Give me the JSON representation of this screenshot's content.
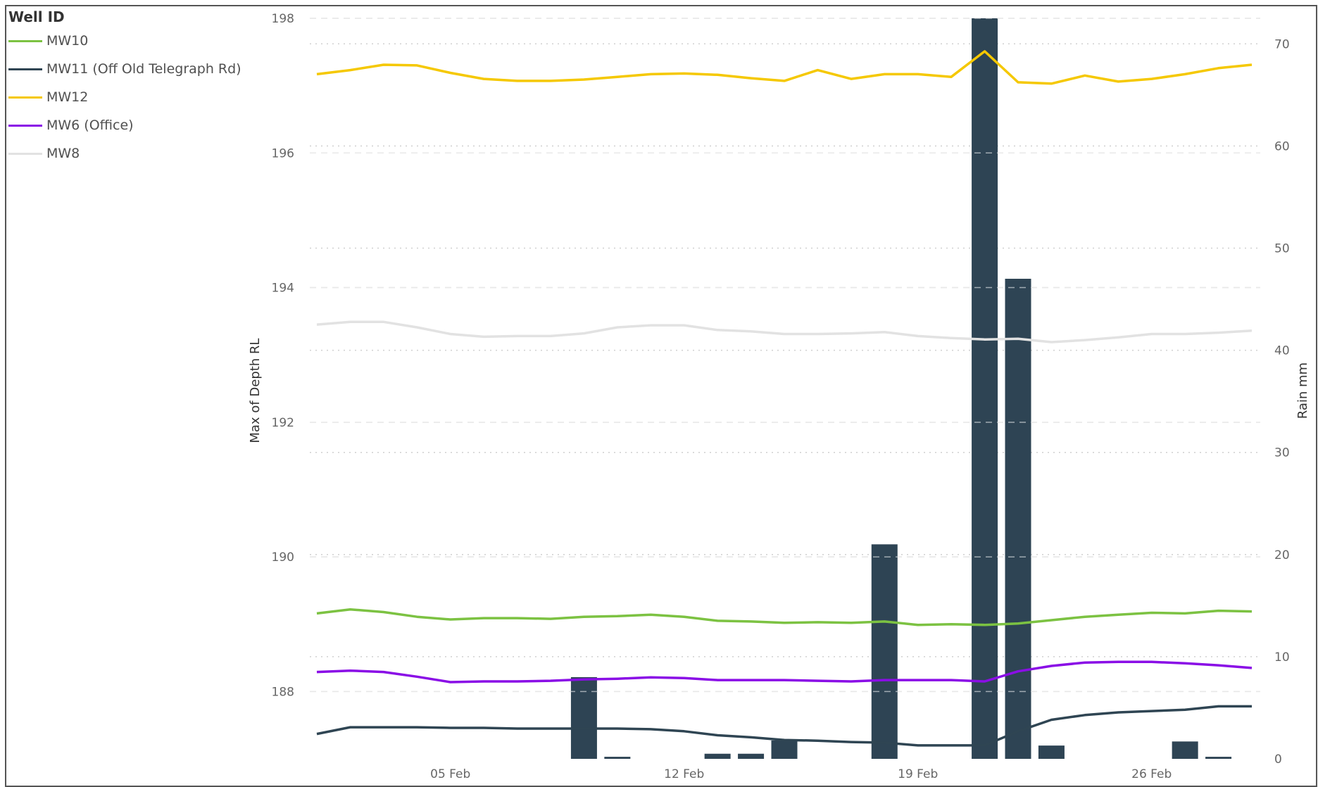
{
  "legend": {
    "title": "Well ID",
    "items": [
      {
        "label": "MW10",
        "color": "#7cc242"
      },
      {
        "label": "MW11 (Off Old Telegraph Rd)",
        "color": "#2f4553"
      },
      {
        "label": "MW12",
        "color": "#f5c800"
      },
      {
        "label": "MW6 (Office)",
        "color": "#8a0ee6"
      },
      {
        "label": "MW8",
        "color": "#e2e2e2"
      }
    ]
  },
  "chart_data": {
    "type": "line",
    "title": "",
    "x_axis": {
      "start_date": "2025-02-01",
      "ticks": [
        {
          "label": "05 Feb",
          "day": 5
        },
        {
          "label": "12 Feb",
          "day": 12
        },
        {
          "label": "19 Feb",
          "day": 19
        },
        {
          "label": "26 Feb",
          "day": 26
        }
      ]
    },
    "left_axis": {
      "title": "Max of Depth RL",
      "min": 187.0,
      "max": 198,
      "ticks": [
        188,
        190,
        192,
        194,
        196,
        198
      ]
    },
    "right_axis": {
      "title": "Rain mm",
      "min": 0,
      "max": 72.5,
      "ticks": [
        0,
        10,
        20,
        30,
        40,
        50,
        60,
        70
      ]
    },
    "dates": [
      "01 Feb",
      "02 Feb",
      "03 Feb",
      "04 Feb",
      "05 Feb",
      "06 Feb",
      "07 Feb",
      "08 Feb",
      "09 Feb",
      "10 Feb",
      "11 Feb",
      "12 Feb",
      "13 Feb",
      "14 Feb",
      "15 Feb",
      "16 Feb",
      "17 Feb",
      "18 Feb",
      "19 Feb",
      "20 Feb",
      "21 Feb",
      "22 Feb",
      "23 Feb",
      "24 Feb",
      "25 Feb",
      "26 Feb",
      "27 Feb",
      "28 Feb",
      "01 Mar"
    ],
    "series": [
      {
        "name": "MW10",
        "color": "#7cc242",
        "axis": "left",
        "values": [
          189.16,
          189.22,
          189.18,
          189.11,
          189.07,
          189.09,
          189.09,
          189.08,
          189.11,
          189.12,
          189.14,
          189.11,
          189.05,
          189.04,
          189.02,
          189.03,
          189.02,
          189.04,
          188.99,
          189.0,
          188.99,
          189.01,
          189.06,
          189.11,
          189.14,
          189.17,
          189.16,
          189.2,
          189.19
        ]
      },
      {
        "name": "MW11 (Off Old Telegraph Rd)",
        "color": "#2f4553",
        "axis": "left",
        "values": [
          187.37,
          187.47,
          187.47,
          187.47,
          187.46,
          187.46,
          187.45,
          187.45,
          187.45,
          187.45,
          187.44,
          187.41,
          187.35,
          187.32,
          187.28,
          187.27,
          187.25,
          187.24,
          187.2,
          187.2,
          187.2,
          187.41,
          187.58,
          187.65,
          187.69,
          187.71,
          187.73,
          187.78,
          187.78
        ]
      },
      {
        "name": "MW12",
        "color": "#f5c800",
        "axis": "left",
        "values": [
          197.17,
          197.23,
          197.31,
          197.3,
          197.19,
          197.1,
          197.07,
          197.07,
          197.09,
          197.13,
          197.17,
          197.18,
          197.16,
          197.11,
          197.07,
          197.23,
          197.1,
          197.17,
          197.17,
          197.13,
          197.51,
          197.05,
          197.03,
          197.15,
          197.06,
          197.1,
          197.17,
          197.26,
          197.31
        ]
      },
      {
        "name": "MW6 (Office)",
        "color": "#8a0ee6",
        "axis": "left",
        "values": [
          188.29,
          188.31,
          188.29,
          188.22,
          188.14,
          188.15,
          188.15,
          188.16,
          188.18,
          188.19,
          188.21,
          188.2,
          188.17,
          188.17,
          188.17,
          188.16,
          188.15,
          188.17,
          188.17,
          188.17,
          188.15,
          188.3,
          188.38,
          188.43,
          188.44,
          188.44,
          188.42,
          188.39,
          188.35
        ]
      },
      {
        "name": "MW8",
        "color": "#e2e2e2",
        "axis": "left",
        "values": [
          193.45,
          193.49,
          193.49,
          193.41,
          193.31,
          193.27,
          193.28,
          193.28,
          193.32,
          193.41,
          193.44,
          193.44,
          193.37,
          193.35,
          193.31,
          193.31,
          193.32,
          193.34,
          193.28,
          193.25,
          193.23,
          193.24,
          193.19,
          193.22,
          193.26,
          193.31,
          193.31,
          193.33,
          193.36
        ]
      }
    ],
    "rain": {
      "name": "Rain",
      "color": "#2e4454",
      "axis": "right",
      "values": [
        0,
        0,
        0,
        0,
        0,
        0,
        0,
        0,
        8,
        0.2,
        0,
        0,
        0.5,
        0.5,
        1.8,
        0,
        0,
        21,
        0,
        0,
        72.5,
        47,
        1.3,
        0,
        0,
        0,
        1.7,
        0.2,
        0
      ]
    },
    "grid": true
  }
}
